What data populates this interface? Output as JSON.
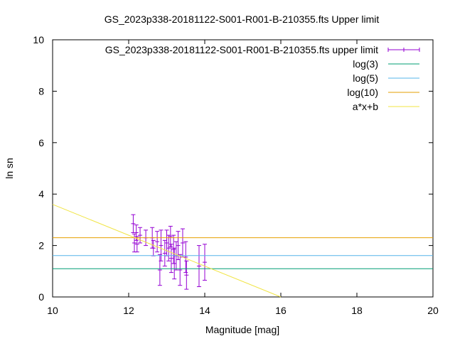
{
  "chart_data": {
    "type": "scatter",
    "title": "GS_2023p338-20181122-S001-R001-B-210355.fts Upper limit",
    "xlabel": "Magnitude [mag]",
    "ylabel": "ln sn",
    "xlim": [
      10,
      20
    ],
    "ylim": [
      0,
      10
    ],
    "x_ticks": [
      "10",
      "12",
      "14",
      "16",
      "18",
      "20"
    ],
    "y_ticks": [
      "0",
      "2",
      "4",
      "6",
      "8",
      "10"
    ],
    "grid": false,
    "legend_position": "top-right",
    "series": [
      {
        "name": "GS_2023p338-20181122-S001-R001-B-210355.fts upper limit",
        "kind": "errorbar",
        "color": "#9400d3",
        "points": [
          {
            "x": 12.12,
            "y": 2.85,
            "err": 0.35
          },
          {
            "x": 12.15,
            "y": 2.1,
            "err": 0.35
          },
          {
            "x": 12.2,
            "y": 2.5,
            "err": 0.3
          },
          {
            "x": 12.22,
            "y": 2.05,
            "err": 0.3
          },
          {
            "x": 12.3,
            "y": 2.4,
            "err": 0.3
          },
          {
            "x": 12.45,
            "y": 2.3,
            "err": 0.3
          },
          {
            "x": 12.62,
            "y": 2.3,
            "err": 0.4
          },
          {
            "x": 12.65,
            "y": 1.9,
            "err": 0.3
          },
          {
            "x": 12.75,
            "y": 2.15,
            "err": 0.4
          },
          {
            "x": 12.82,
            "y": 1.05,
            "err": 0.6
          },
          {
            "x": 12.85,
            "y": 2.0,
            "err": 0.6
          },
          {
            "x": 12.95,
            "y": 1.7,
            "err": 0.5
          },
          {
            "x": 13.0,
            "y": 2.1,
            "err": 0.5
          },
          {
            "x": 13.05,
            "y": 1.9,
            "err": 0.5
          },
          {
            "x": 13.1,
            "y": 2.35,
            "err": 0.4
          },
          {
            "x": 13.12,
            "y": 1.5,
            "err": 0.55
          },
          {
            "x": 13.18,
            "y": 1.85,
            "err": 0.55
          },
          {
            "x": 13.2,
            "y": 1.3,
            "err": 0.6
          },
          {
            "x": 13.25,
            "y": 1.6,
            "err": 0.55
          },
          {
            "x": 13.3,
            "y": 2.0,
            "err": 0.55
          },
          {
            "x": 13.35,
            "y": 1.05,
            "err": 0.6
          },
          {
            "x": 13.42,
            "y": 2.1,
            "err": 0.55
          },
          {
            "x": 13.5,
            "y": 1.55,
            "err": 0.6
          },
          {
            "x": 13.52,
            "y": 0.85,
            "err": 0.55
          },
          {
            "x": 13.85,
            "y": 1.2,
            "err": 0.8
          },
          {
            "x": 14.0,
            "y": 1.35,
            "err": 0.7
          }
        ]
      },
      {
        "name": "log(3)",
        "kind": "hline",
        "y": 1.0986,
        "color": "#009e73"
      },
      {
        "name": "log(5)",
        "kind": "hline",
        "y": 1.6094,
        "color": "#56b4e9"
      },
      {
        "name": "log(10)",
        "kind": "hline",
        "y": 2.3026,
        "color": "#e69f00"
      },
      {
        "name": "a*x+b",
        "kind": "line",
        "color": "#f0e442",
        "x": [
          10,
          16
        ],
        "y": [
          3.6,
          0
        ]
      }
    ]
  }
}
